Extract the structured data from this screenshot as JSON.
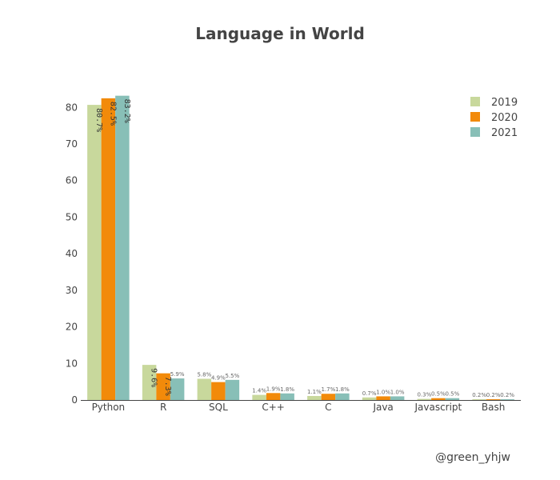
{
  "chart_data": {
    "type": "bar",
    "title": "Language in World",
    "xlabel": "",
    "ylabel": "",
    "categories": [
      "Python",
      "R",
      "SQL",
      "C++",
      "C",
      "Java",
      "Javascript",
      "Bash"
    ],
    "series": [
      {
        "name": "2019",
        "color": "#c8d89c",
        "values": [
          80.7,
          9.6,
          5.8,
          1.4,
          1.1,
          0.7,
          0.3,
          0.2
        ],
        "labels": [
          "80.7%",
          "9.6%",
          "5.8%",
          "1.4%",
          "1.1%",
          "0.7%",
          "0.3%",
          "0.2%"
        ]
      },
      {
        "name": "2020",
        "color": "#f28a0a",
        "values": [
          82.5,
          7.3,
          4.9,
          1.9,
          1.7,
          1.0,
          0.5,
          0.2
        ],
        "labels": [
          "82.5%",
          "7.3%",
          "4.9%",
          "1.9%",
          "1.7%",
          "1.0%",
          "0.5%",
          "0.2%"
        ]
      },
      {
        "name": "2021",
        "color": "#88bfb7",
        "values": [
          83.2,
          5.9,
          5.5,
          1.8,
          1.8,
          1.0,
          0.5,
          0.2
        ],
        "labels": [
          "83.2%",
          "5.9%",
          "5.5%",
          "1.8%",
          "1.8%",
          "1.0%",
          "0.5%",
          "0.2%"
        ]
      }
    ],
    "yticks": [
      0,
      10,
      20,
      30,
      40,
      50,
      60,
      70,
      80
    ],
    "ylim": [
      0,
      87.5
    ],
    "grid": false,
    "legend": "top-right",
    "credit": "@green_yhjw"
  }
}
